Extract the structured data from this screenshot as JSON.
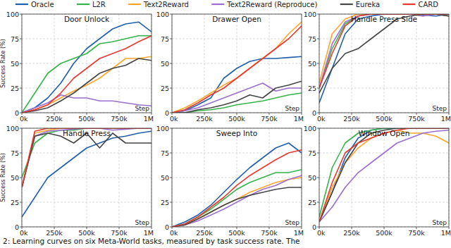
{
  "chart_data": [
    {
      "type": "line",
      "title": "Door Unlock",
      "x_label": "Step",
      "y_label": "Success Rate (%)",
      "legend": "top",
      "grid": true,
      "xlim": [
        0,
        1000000
      ],
      "ylim": [
        0,
        100
      ],
      "xticks": [
        {
          "value": 0,
          "label": "0k"
        },
        {
          "value": 250000,
          "label": "250k"
        },
        {
          "value": 500000,
          "label": "500k"
        },
        {
          "value": 750000,
          "label": "750k"
        },
        {
          "value": 1000000,
          "label": "1M"
        }
      ],
      "yticks": [
        0,
        25,
        50,
        75,
        100
      ],
      "x": [
        0,
        100000,
        200000,
        300000,
        400000,
        500000,
        600000,
        700000,
        800000,
        900000,
        1000000
      ],
      "series": [
        {
          "name": "Oracle",
          "color": "#1f5fae",
          "values": [
            0,
            5,
            15,
            30,
            50,
            65,
            75,
            85,
            90,
            92,
            82
          ]
        },
        {
          "name": "L2R",
          "color": "#34b449",
          "values": [
            0,
            20,
            40,
            50,
            55,
            60,
            70,
            72,
            75,
            78,
            78
          ]
        },
        {
          "name": "Text2Reward",
          "color": "#ffa52c",
          "values": [
            0,
            3,
            8,
            15,
            22,
            28,
            35,
            45,
            55,
            55,
            57
          ]
        },
        {
          "name": "Text2Reward (Reproduce)",
          "color": "#9b6fd1",
          "values": [
            0,
            5,
            10,
            18,
            15,
            15,
            12,
            12,
            10,
            8,
            7
          ]
        },
        {
          "name": "Eureka",
          "color": "#454545",
          "values": [
            0,
            2,
            5,
            12,
            20,
            30,
            40,
            45,
            48,
            55,
            53
          ]
        },
        {
          "name": "CARD",
          "color": "#e8392e",
          "values": [
            0,
            3,
            8,
            20,
            35,
            45,
            55,
            60,
            65,
            72,
            78
          ]
        }
      ]
    },
    {
      "type": "line",
      "title": "Drawer Open",
      "x_label": "Step",
      "grid": true,
      "xlim": [
        0,
        1000000
      ],
      "ylim": [
        0,
        100
      ],
      "xticks": [
        {
          "value": 0,
          "label": "0k"
        },
        {
          "value": 250000,
          "label": "250k"
        },
        {
          "value": 500000,
          "label": "500k"
        },
        {
          "value": 750000,
          "label": "750k"
        },
        {
          "value": 1000000,
          "label": "1M"
        }
      ],
      "yticks": [
        0,
        25,
        50,
        75,
        100
      ],
      "x": [
        0,
        100000,
        200000,
        300000,
        400000,
        500000,
        600000,
        700000,
        800000,
        900000,
        1000000
      ],
      "series": [
        {
          "name": "Oracle",
          "color": "#1f5fae",
          "values": [
            0,
            2,
            8,
            15,
            35,
            45,
            52,
            55,
            55,
            56,
            57
          ]
        },
        {
          "name": "L2R",
          "color": "#34b449",
          "values": [
            0,
            0,
            2,
            3,
            5,
            8,
            10,
            12,
            15,
            18,
            20
          ]
        },
        {
          "name": "Text2Reward",
          "color": "#ffa52c",
          "values": [
            0,
            5,
            12,
            20,
            28,
            35,
            45,
            55,
            65,
            80,
            92
          ]
        },
        {
          "name": "Text2Reward (Reproduce)",
          "color": "#9b6fd1",
          "values": [
            0,
            2,
            5,
            10,
            15,
            20,
            25,
            30,
            22,
            25,
            25
          ]
        },
        {
          "name": "Eureka",
          "color": "#454545",
          "values": [
            0,
            0,
            3,
            5,
            8,
            12,
            18,
            15,
            25,
            28,
            32
          ]
        },
        {
          "name": "CARD",
          "color": "#e8392e",
          "values": [
            0,
            3,
            10,
            18,
            25,
            35,
            45,
            55,
            65,
            75,
            88
          ]
        }
      ]
    },
    {
      "type": "line",
      "title": "Handle Press Side",
      "x_label": "Step",
      "grid": true,
      "xlim": [
        0,
        1000000
      ],
      "ylim": [
        0,
        100
      ],
      "xticks": [
        {
          "value": 0,
          "label": "0k"
        },
        {
          "value": 250000,
          "label": "250k"
        },
        {
          "value": 500000,
          "label": "500k"
        },
        {
          "value": 750000,
          "label": "750k"
        },
        {
          "value": 1000000,
          "label": "1M"
        }
      ],
      "yticks": [
        0,
        25,
        50,
        75,
        100
      ],
      "x": [
        0,
        100000,
        200000,
        300000,
        400000,
        500000,
        600000,
        700000,
        800000,
        900000,
        1000000
      ],
      "series": [
        {
          "name": "Oracle",
          "color": "#1f5fae",
          "values": [
            10,
            45,
            80,
            95,
            98,
            100,
            100,
            100,
            99,
            98,
            100
          ]
        },
        {
          "name": "L2R",
          "color": "#34b449",
          "values": [
            25,
            65,
            90,
            98,
            100,
            100,
            100,
            100,
            100,
            100,
            98
          ]
        },
        {
          "name": "Text2Reward",
          "color": "#ffa52c",
          "values": [
            30,
            80,
            95,
            100,
            100,
            100,
            100,
            100,
            98,
            100,
            98
          ]
        },
        {
          "name": "Text2Reward (Reproduce)",
          "color": "#9b6fd1",
          "values": [
            25,
            70,
            92,
            98,
            100,
            100,
            100,
            100,
            98,
            100,
            98
          ]
        },
        {
          "name": "Eureka",
          "color": "#454545",
          "values": [
            20,
            45,
            60,
            65,
            75,
            85,
            95,
            98,
            100,
            100,
            98
          ]
        },
        {
          "name": "CARD",
          "color": "#e8392e",
          "values": [
            25,
            60,
            88,
            98,
            100,
            100,
            100,
            100,
            100,
            100,
            100
          ]
        }
      ]
    },
    {
      "type": "line",
      "title": "Handle Press",
      "x_label": "Step",
      "y_label": "Success Rate (%)",
      "grid": true,
      "xlim": [
        0,
        1000000
      ],
      "ylim": [
        0,
        100
      ],
      "xticks": [
        {
          "value": 0,
          "label": "0k"
        },
        {
          "value": 250000,
          "label": "250k"
        },
        {
          "value": 500000,
          "label": "500k"
        },
        {
          "value": 750000,
          "label": "750k"
        },
        {
          "value": 1000000,
          "label": "1M"
        }
      ],
      "yticks": [
        0,
        25,
        50,
        75,
        100
      ],
      "x": [
        0,
        100000,
        200000,
        300000,
        400000,
        500000,
        600000,
        700000,
        800000,
        900000,
        1000000
      ],
      "series": [
        {
          "name": "Oracle",
          "color": "#1f5fae",
          "values": [
            10,
            30,
            50,
            60,
            70,
            80,
            85,
            90,
            92,
            95,
            97
          ]
        },
        {
          "name": "L2R",
          "color": "#34b449",
          "values": [
            50,
            85,
            95,
            98,
            98,
            100,
            100,
            100,
            100,
            100,
            100
          ]
        },
        {
          "name": "Text2Reward",
          "color": "#ffa52c",
          "values": [
            40,
            95,
            98,
            100,
            100,
            100,
            100,
            100,
            100,
            100,
            100
          ]
        },
        {
          "name": "Text2Reward (Reproduce)",
          "color": "#9b6fd1",
          "values": [
            40,
            92,
            97,
            98,
            99,
            100,
            100,
            98,
            99,
            100,
            100
          ]
        },
        {
          "name": "Eureka",
          "color": "#454545",
          "values": [
            40,
            92,
            95,
            92,
            85,
            95,
            80,
            95,
            85,
            85,
            85
          ]
        },
        {
          "name": "CARD",
          "color": "#e8392e",
          "values": [
            40,
            97,
            100,
            100,
            100,
            100,
            100,
            100,
            100,
            100,
            100
          ]
        }
      ]
    },
    {
      "type": "line",
      "title": "Sweep Into",
      "x_label": "Step",
      "grid": true,
      "xlim": [
        0,
        1000000
      ],
      "ylim": [
        0,
        100
      ],
      "xticks": [
        {
          "value": 0,
          "label": "0k"
        },
        {
          "value": 250000,
          "label": "250k"
        },
        {
          "value": 500000,
          "label": "500k"
        },
        {
          "value": 750000,
          "label": "750k"
        },
        {
          "value": 1000000,
          "label": "1M"
        }
      ],
      "yticks": [
        0,
        25,
        50,
        75,
        100
      ],
      "x": [
        0,
        100000,
        200000,
        300000,
        400000,
        500000,
        600000,
        700000,
        800000,
        900000,
        1000000
      ],
      "series": [
        {
          "name": "Oracle",
          "color": "#1f5fae",
          "values": [
            0,
            5,
            12,
            22,
            35,
            48,
            60,
            70,
            80,
            85,
            75
          ]
        },
        {
          "name": "L2R",
          "color": "#34b449",
          "values": [
            0,
            3,
            10,
            18,
            28,
            38,
            45,
            50,
            55,
            55,
            58
          ]
        },
        {
          "name": "Text2Reward",
          "color": "#ffa52c",
          "values": [
            0,
            2,
            8,
            15,
            22,
            28,
            35,
            40,
            45,
            48,
            50
          ]
        },
        {
          "name": "Text2Reward (Reproduce)",
          "color": "#9b6fd1",
          "values": [
            0,
            2,
            6,
            12,
            18,
            25,
            32,
            38,
            42,
            48,
            52
          ]
        },
        {
          "name": "Eureka",
          "color": "#454545",
          "values": [
            0,
            2,
            8,
            15,
            22,
            28,
            32,
            35,
            38,
            40,
            40
          ]
        },
        {
          "name": "CARD",
          "color": "#e8392e",
          "values": [
            0,
            3,
            10,
            20,
            30,
            42,
            52,
            60,
            68,
            75,
            78
          ]
        }
      ]
    },
    {
      "type": "line",
      "title": "Window Open",
      "x_label": "Step",
      "grid": true,
      "xlim": [
        0,
        1000000
      ],
      "ylim": [
        0,
        100
      ],
      "xticks": [
        {
          "value": 0,
          "label": "0k"
        },
        {
          "value": 250000,
          "label": "250k"
        },
        {
          "value": 500000,
          "label": "500k"
        },
        {
          "value": 750000,
          "label": "750k"
        },
        {
          "value": 1000000,
          "label": "1M"
        }
      ],
      "yticks": [
        0,
        25,
        50,
        75,
        100
      ],
      "x": [
        0,
        100000,
        200000,
        300000,
        400000,
        500000,
        600000,
        700000,
        800000,
        900000,
        1000000
      ],
      "series": [
        {
          "name": "Oracle",
          "color": "#1f5fae",
          "values": [
            5,
            35,
            70,
            90,
            98,
            100,
            100,
            100,
            100,
            100,
            100
          ]
        },
        {
          "name": "L2R",
          "color": "#34b449",
          "values": [
            10,
            60,
            85,
            95,
            98,
            100,
            100,
            100,
            100,
            100,
            100
          ]
        },
        {
          "name": "Text2Reward",
          "color": "#ffa52c",
          "values": [
            5,
            40,
            65,
            80,
            90,
            95,
            98,
            95,
            95,
            92,
            85
          ]
        },
        {
          "name": "Text2Reward (Reproduce)",
          "color": "#9b6fd1",
          "values": [
            5,
            20,
            40,
            55,
            65,
            75,
            85,
            90,
            95,
            97,
            98
          ]
        },
        {
          "name": "Eureka",
          "color": "#454545",
          "values": [
            5,
            35,
            65,
            85,
            95,
            98,
            100,
            100,
            100,
            100,
            100
          ]
        },
        {
          "name": "CARD",
          "color": "#e8392e",
          "values": [
            5,
            45,
            75,
            85,
            90,
            95,
            98,
            100,
            100,
            100,
            100
          ]
        }
      ]
    }
  ],
  "caption": "2: Learning curves on six Meta-World tasks, measured by task success rate. The"
}
